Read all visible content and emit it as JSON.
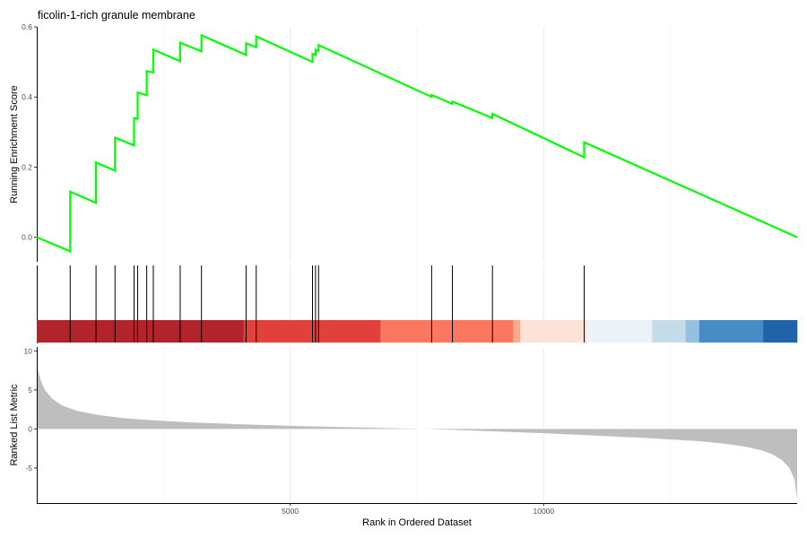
{
  "chart_data": {
    "type": "line",
    "title": "ficolin-1-rich granule membrane",
    "xlabel": "Rank in Ordered Dataset",
    "x_range": [
      1,
      15000
    ],
    "x_ticks": [
      5000,
      10000
    ],
    "x_tick_labels": [
      "5000",
      "10000"
    ],
    "grid": "vertical",
    "es_panel": {
      "ylabel": "Running Enrichment Score",
      "ylim": [
        -0.07,
        0.6
      ],
      "y_ticks": [
        0.0,
        0.2,
        0.4,
        0.6
      ],
      "y_tick_labels": [
        "0.0",
        "0.2",
        "0.4",
        "0.6"
      ],
      "line_color": "#00ff00",
      "running_score": {
        "x": [
          1,
          660,
          660,
          1170,
          1170,
          1545,
          1545,
          1920,
          1920,
          1990,
          1990,
          2170,
          2170,
          2300,
          2300,
          2830,
          2830,
          3250,
          3250,
          4130,
          4130,
          4330,
          4330,
          5440,
          5440,
          5500,
          5500,
          5560,
          5560,
          7790,
          7790,
          8200,
          8200,
          8990,
          8990,
          10800,
          10800,
          15000
        ],
        "y": [
          0.0,
          -0.04,
          0.13,
          0.098,
          0.213,
          0.19,
          0.284,
          0.262,
          0.34,
          0.338,
          0.413,
          0.405,
          0.474,
          0.47,
          0.535,
          0.502,
          0.555,
          0.53,
          0.576,
          0.52,
          0.553,
          0.542,
          0.573,
          0.5,
          0.523,
          0.52,
          0.535,
          0.532,
          0.548,
          0.4,
          0.406,
          0.38,
          0.387,
          0.34,
          0.352,
          0.228,
          0.271,
          0.0
        ]
      }
    },
    "hits_panel": {
      "hit_ranks": [
        660,
        1170,
        1545,
        1920,
        1990,
        2170,
        2300,
        2830,
        3250,
        4130,
        4330,
        5440,
        5500,
        5560,
        7790,
        8200,
        8990,
        10800
      ],
      "hit_color": "#000000",
      "color_bar": [
        {
          "start": 1,
          "end": 4080,
          "color": "#b2232b"
        },
        {
          "start": 4080,
          "end": 6780,
          "color": "#e2403b"
        },
        {
          "start": 6780,
          "end": 9400,
          "color": "#fb775e"
        },
        {
          "start": 9400,
          "end": 9540,
          "color": "#fca98c"
        },
        {
          "start": 9540,
          "end": 10850,
          "color": "#fee2d5"
        },
        {
          "start": 10850,
          "end": 12140,
          "color": "#ecf2fa"
        },
        {
          "start": 12140,
          "end": 12800,
          "color": "#c4dbea"
        },
        {
          "start": 12800,
          "end": 13070,
          "color": "#93c1df"
        },
        {
          "start": 13070,
          "end": 14330,
          "color": "#448dc6"
        },
        {
          "start": 14330,
          "end": 15000,
          "color": "#1f64a8"
        }
      ]
    },
    "rank_panel": {
      "ylabel": "Ranked List Metric",
      "ylim": [
        -9.5,
        10.5
      ],
      "y_ticks": [
        -5,
        0,
        5,
        10
      ],
      "y_tick_labels": [
        "-5",
        "0",
        "5",
        "10"
      ],
      "fill_color": "#bebebe",
      "metric": {
        "x": [
          1,
          30,
          80,
          160,
          300,
          500,
          800,
          1200,
          1700,
          2300,
          3000,
          4000,
          5000,
          6000,
          7000,
          7600,
          8000,
          9000,
          10000,
          11000,
          12000,
          13000,
          13500,
          14000,
          14300,
          14500,
          14700,
          14850,
          14950,
          15000
        ],
        "y": [
          9.0,
          7.5,
          6.2,
          5.0,
          3.9,
          3.0,
          2.3,
          1.8,
          1.4,
          1.1,
          0.85,
          0.6,
          0.4,
          0.25,
          0.1,
          0.0,
          -0.08,
          -0.3,
          -0.55,
          -0.85,
          -1.15,
          -1.55,
          -1.85,
          -2.3,
          -2.75,
          -3.2,
          -4.0,
          -5.0,
          -6.5,
          -9.0
        ]
      }
    }
  }
}
